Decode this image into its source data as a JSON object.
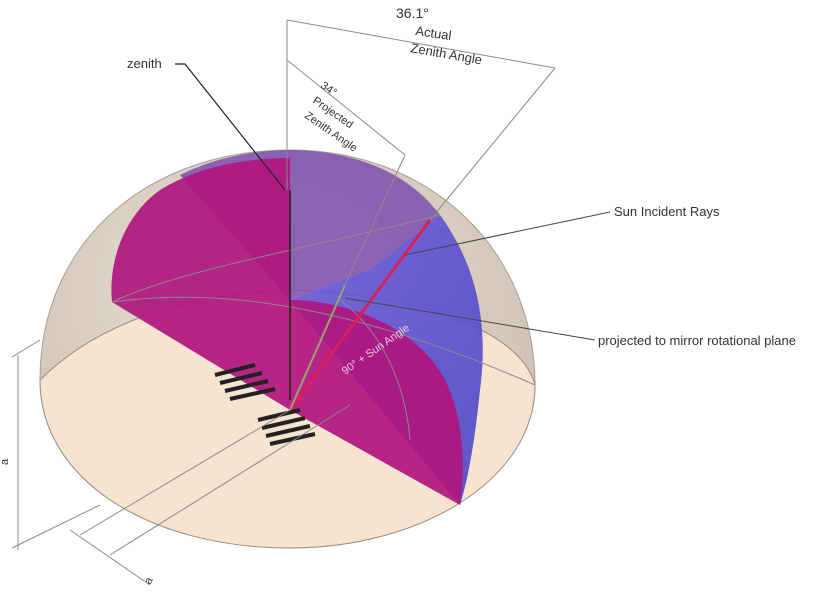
{
  "labels": {
    "zenith": "zenith",
    "actual_angle_value": "36.1°",
    "actual_angle_line1": "Actual",
    "actual_angle_line2": "Zenith Angle",
    "projected_angle_value": "34°",
    "projected_angle_line1": "Projected",
    "projected_angle_line2": "Zenith Angle",
    "sun_rays": "Sun Incident Rays",
    "projected_plane": "projected to mirror rotational plane",
    "sun_angle": "90° + Sun Angle",
    "dim_vertical": "a",
    "dim_horizontal": "a"
  },
  "colors": {
    "dome_outer": "#c9b8a6",
    "base_disk": "#f5e2cc",
    "magenta_plane": "#b0157f",
    "blue_face": "#5a4fd0",
    "purple_top": "#7a4aa8",
    "sun_ray": "#d81e5b",
    "mirror": "#222222"
  }
}
